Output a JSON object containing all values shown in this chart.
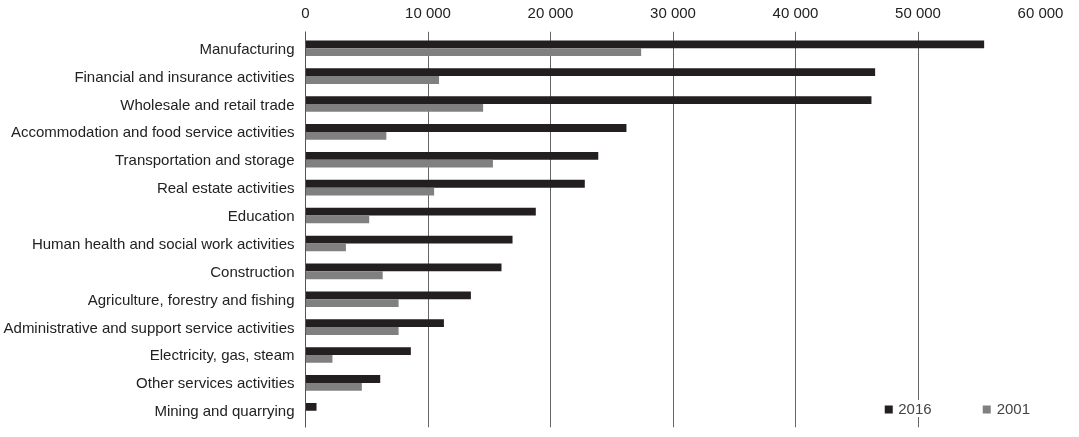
{
  "chart_data": {
    "type": "bar",
    "orientation": "horizontal",
    "categories": [
      "Manufacturing",
      "Financial and insurance activities",
      "Wholesale and retail trade",
      "Accommodation and food service activities",
      "Transportation and storage",
      "Real estate activities",
      "Education",
      "Human health and social work activities",
      "Construction",
      "Agriculture, forestry and fishing",
      "Administrative and support service activities",
      "Electricity, gas, steam",
      "Other services activities",
      "Mining and quarrying"
    ],
    "series": [
      {
        "name": "2016",
        "color": "#231f20",
        "values": [
          55400,
          46500,
          46200,
          26200,
          23900,
          22800,
          18800,
          16900,
          16000,
          13500,
          11300,
          8600,
          6100,
          900
        ]
      },
      {
        "name": "2001",
        "color": "#808080",
        "values": [
          27400,
          10900,
          14500,
          6600,
          15300,
          10500,
          5200,
          3300,
          6300,
          7600,
          7600,
          2200,
          4600,
          null
        ]
      }
    ],
    "xlim": [
      0,
      60000
    ],
    "xticks": [
      {
        "value": 0,
        "label": "0"
      },
      {
        "value": 10000,
        "label": "10 000"
      },
      {
        "value": 20000,
        "label": "20 000"
      },
      {
        "value": 30000,
        "label": "30 000"
      },
      {
        "value": 40000,
        "label": "40 000"
      },
      {
        "value": 50000,
        "label": "50 000"
      },
      {
        "value": 60000,
        "label": "60 000"
      }
    ],
    "grid": "x",
    "legend": "bottom right"
  }
}
